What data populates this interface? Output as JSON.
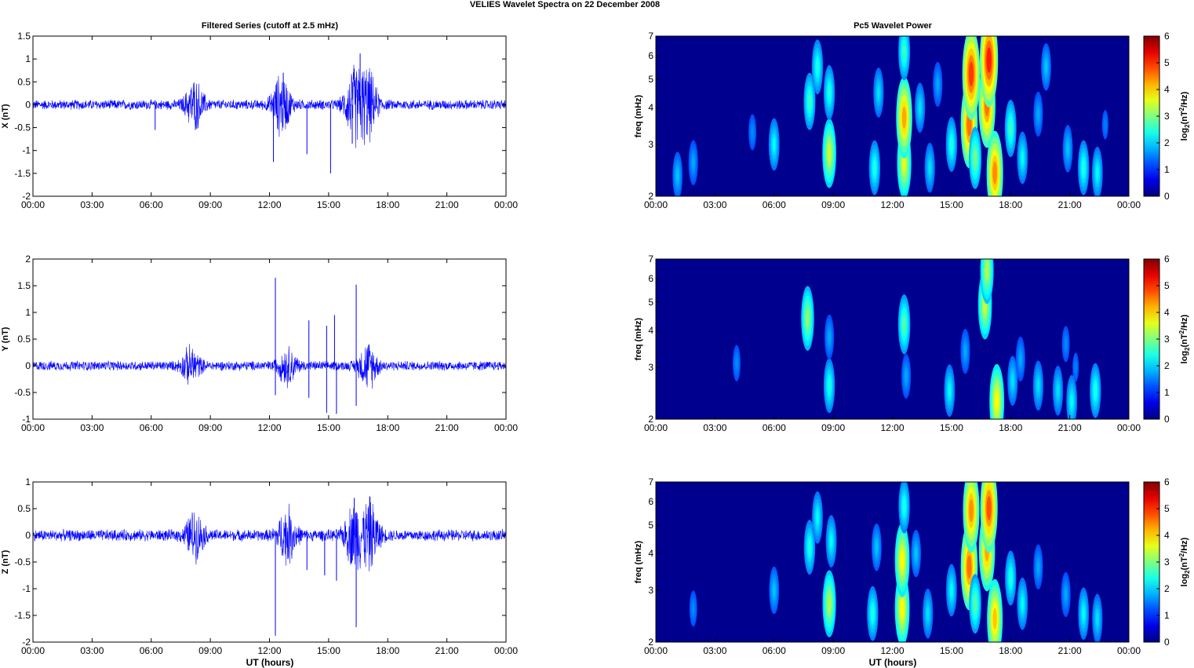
{
  "figure_title": "VELIES Wavelet Spectra on 22 December  2008",
  "left_column_title": "Filtered Series (cutoff at 2.5 mHz)",
  "right_column_title": "Pc5 Wavelet Power",
  "time_ticks": [
    "00:00",
    "03:00",
    "06:00",
    "09:00",
    "12:00",
    "15:00",
    "18:00",
    "21:00",
    "00:00"
  ],
  "xlabel": "UT (hours)",
  "colors": {
    "series": "#0000ff",
    "background": "#00008f"
  },
  "chart_data": [
    {
      "type": "line",
      "title": "Filtered Series (cutoff at 2.5 mHz)",
      "ylabel": "X (nT)",
      "xlim": [
        0,
        24
      ],
      "ylim": [
        -2,
        1.5
      ],
      "yticks": [
        "1.5",
        "1",
        "0.5",
        "0",
        "-0.5",
        "-1",
        "-1.5",
        "-2"
      ],
      "noise_amplitude": 0.12,
      "bursts": [
        {
          "t": 8.2,
          "amp": 0.55
        },
        {
          "t": 12.6,
          "amp": 0.7
        },
        {
          "t": 16.3,
          "amp": 0.85
        },
        {
          "t": 17.0,
          "amp": 0.8
        }
      ],
      "spikes": [
        {
          "t": 12.2,
          "y": -1.25
        },
        {
          "t": 12.7,
          "y": 0.7
        },
        {
          "t": 13.9,
          "y": -1.08
        },
        {
          "t": 15.1,
          "y": -1.5
        },
        {
          "t": 16.6,
          "y": 1.12
        },
        {
          "t": 16.2,
          "y": -0.85
        },
        {
          "t": 6.2,
          "y": -0.55
        }
      ]
    },
    {
      "type": "line",
      "ylabel": "Y (nT)",
      "xlim": [
        0,
        24
      ],
      "ylim": [
        -1,
        2
      ],
      "yticks": [
        "2",
        "1.5",
        "1",
        "0.5",
        "0",
        "-0.5",
        "-1"
      ],
      "noise_amplitude": 0.1,
      "bursts": [
        {
          "t": 8.0,
          "amp": 0.35
        },
        {
          "t": 12.9,
          "amp": 0.35
        },
        {
          "t": 17.0,
          "amp": 0.45
        }
      ],
      "spikes": [
        {
          "t": 12.3,
          "y": 1.65
        },
        {
          "t": 12.3,
          "y": -0.55
        },
        {
          "t": 14.0,
          "y": 0.85
        },
        {
          "t": 14.0,
          "y": -0.6
        },
        {
          "t": 14.9,
          "y": 0.75
        },
        {
          "t": 14.9,
          "y": -0.88
        },
        {
          "t": 15.3,
          "y": 0.95
        },
        {
          "t": 15.4,
          "y": -0.9
        },
        {
          "t": 16.4,
          "y": 1.52
        },
        {
          "t": 16.4,
          "y": -0.75
        }
      ]
    },
    {
      "type": "line",
      "ylabel": "Z (nT)",
      "xlim": [
        0,
        24
      ],
      "ylim": [
        -2,
        1
      ],
      "yticks": [
        "1",
        "0.5",
        "0",
        "-0.5",
        "-1",
        "-1.5",
        "-2"
      ],
      "noise_amplitude": 0.12,
      "bursts": [
        {
          "t": 8.2,
          "amp": 0.45
        },
        {
          "t": 12.9,
          "amp": 0.55
        },
        {
          "t": 16.3,
          "amp": 0.65
        },
        {
          "t": 17.1,
          "amp": 0.65
        }
      ],
      "spikes": [
        {
          "t": 12.3,
          "y": -1.88
        },
        {
          "t": 13.9,
          "y": -0.65
        },
        {
          "t": 14.8,
          "y": -0.75
        },
        {
          "t": 15.4,
          "y": -0.85
        },
        {
          "t": 16.4,
          "y": -1.72
        },
        {
          "t": 16.3,
          "y": 0.7
        },
        {
          "t": 17.1,
          "y": 0.72
        }
      ]
    },
    {
      "type": "heatmap",
      "title": "Pc5 Wavelet Power",
      "ylabel": "freq (mHz)",
      "yscale": "log",
      "xlim": [
        0,
        24
      ],
      "ylim": [
        2,
        7
      ],
      "yticks": [
        "7",
        "6",
        "5",
        "4",
        "3",
        "2"
      ],
      "colorbar": {
        "label": "log2(nT2/Hz)",
        "range": [
          0,
          6
        ],
        "ticks": [
          "6",
          "5",
          "4",
          "3",
          "2",
          "1",
          "0"
        ]
      },
      "blobs": [
        {
          "t": 1.1,
          "f": 2.35,
          "p": 1.4
        },
        {
          "t": 1.9,
          "f": 2.6,
          "p": 1.2
        },
        {
          "t": 4.9,
          "f": 3.3,
          "p": 1.0
        },
        {
          "t": 6.0,
          "f": 3.0,
          "p": 1.8
        },
        {
          "t": 7.8,
          "f": 4.2,
          "p": 2.2
        },
        {
          "t": 8.2,
          "f": 5.5,
          "p": 2.0
        },
        {
          "t": 8.8,
          "f": 2.8,
          "p": 3.2
        },
        {
          "t": 8.8,
          "f": 4.5,
          "p": 2.0
        },
        {
          "t": 11.1,
          "f": 2.5,
          "p": 2.0
        },
        {
          "t": 11.3,
          "f": 4.5,
          "p": 1.6
        },
        {
          "t": 12.6,
          "f": 2.6,
          "p": 3.4
        },
        {
          "t": 12.6,
          "f": 3.7,
          "p": 4.2
        },
        {
          "t": 12.6,
          "f": 6.2,
          "p": 2.2
        },
        {
          "t": 13.4,
          "f": 4.0,
          "p": 1.6
        },
        {
          "t": 13.9,
          "f": 2.5,
          "p": 1.6
        },
        {
          "t": 14.3,
          "f": 4.8,
          "p": 1.2
        },
        {
          "t": 15.0,
          "f": 3.0,
          "p": 2.0
        },
        {
          "t": 15.9,
          "f": 3.5,
          "p": 4.6
        },
        {
          "t": 16.0,
          "f": 5.2,
          "p": 5.0
        },
        {
          "t": 16.2,
          "f": 2.7,
          "p": 2.6
        },
        {
          "t": 16.8,
          "f": 4.1,
          "p": 4.6
        },
        {
          "t": 16.9,
          "f": 5.8,
          "p": 5.2
        },
        {
          "t": 17.2,
          "f": 2.4,
          "p": 4.4
        },
        {
          "t": 18.0,
          "f": 3.4,
          "p": 2.2
        },
        {
          "t": 18.6,
          "f": 2.7,
          "p": 1.8
        },
        {
          "t": 19.4,
          "f": 3.8,
          "p": 1.2
        },
        {
          "t": 19.8,
          "f": 5.5,
          "p": 1.4
        },
        {
          "t": 20.9,
          "f": 2.9,
          "p": 1.4
        },
        {
          "t": 21.7,
          "f": 2.5,
          "p": 2.0
        },
        {
          "t": 22.4,
          "f": 2.4,
          "p": 1.8
        },
        {
          "t": 22.8,
          "f": 3.5,
          "p": 0.9
        }
      ]
    },
    {
      "type": "heatmap",
      "ylabel": "freq (mHz)",
      "yscale": "log",
      "xlim": [
        0,
        24
      ],
      "ylim": [
        2,
        7
      ],
      "yticks": [
        "7",
        "6",
        "5",
        "4",
        "3",
        "2"
      ],
      "colorbar": {
        "label": "log2(nT2/Hz)",
        "range": [
          0,
          6
        ],
        "ticks": [
          "6",
          "5",
          "4",
          "3",
          "2",
          "1",
          "0"
        ]
      },
      "blobs": [
        {
          "t": 4.1,
          "f": 3.1,
          "p": 1.0
        },
        {
          "t": 7.7,
          "f": 4.4,
          "p": 2.8
        },
        {
          "t": 8.8,
          "f": 2.6,
          "p": 2.0
        },
        {
          "t": 8.8,
          "f": 3.8,
          "p": 1.2
        },
        {
          "t": 12.6,
          "f": 4.2,
          "p": 2.4
        },
        {
          "t": 12.7,
          "f": 2.8,
          "p": 1.2
        },
        {
          "t": 14.9,
          "f": 2.5,
          "p": 1.8
        },
        {
          "t": 15.7,
          "f": 3.4,
          "p": 1.2
        },
        {
          "t": 16.7,
          "f": 4.9,
          "p": 3.2
        },
        {
          "t": 16.8,
          "f": 6.4,
          "p": 3.0
        },
        {
          "t": 17.3,
          "f": 2.3,
          "p": 3.6
        },
        {
          "t": 18.1,
          "f": 2.7,
          "p": 1.6
        },
        {
          "t": 18.5,
          "f": 3.2,
          "p": 1.2
        },
        {
          "t": 19.4,
          "f": 2.6,
          "p": 1.6
        },
        {
          "t": 20.4,
          "f": 2.5,
          "p": 1.6
        },
        {
          "t": 20.8,
          "f": 3.6,
          "p": 1.0
        },
        {
          "t": 21.3,
          "f": 3.0,
          "p": 0.9
        },
        {
          "t": 21.1,
          "f": 2.3,
          "p": 1.8
        },
        {
          "t": 22.3,
          "f": 2.5,
          "p": 2.0
        }
      ]
    },
    {
      "type": "heatmap",
      "ylabel": "freq (mHz)",
      "yscale": "log",
      "xlim": [
        0,
        24
      ],
      "ylim": [
        2,
        7
      ],
      "yticks": [
        "7",
        "6",
        "5",
        "4",
        "3",
        "2"
      ],
      "colorbar": {
        "label": "log2(nT2/Hz)",
        "range": [
          0,
          6
        ],
        "ticks": [
          "6",
          "5",
          "4",
          "3",
          "2",
          "1",
          "0"
        ]
      },
      "blobs": [
        {
          "t": 1.9,
          "f": 2.6,
          "p": 1.0
        },
        {
          "t": 6.0,
          "f": 3.0,
          "p": 1.4
        },
        {
          "t": 7.8,
          "f": 4.2,
          "p": 2.0
        },
        {
          "t": 8.2,
          "f": 5.3,
          "p": 1.8
        },
        {
          "t": 8.8,
          "f": 2.7,
          "p": 3.0
        },
        {
          "t": 8.9,
          "f": 4.4,
          "p": 1.8
        },
        {
          "t": 11.0,
          "f": 2.5,
          "p": 2.0
        },
        {
          "t": 11.2,
          "f": 4.2,
          "p": 1.4
        },
        {
          "t": 12.5,
          "f": 2.6,
          "p": 3.6
        },
        {
          "t": 12.5,
          "f": 3.8,
          "p": 3.6
        },
        {
          "t": 12.6,
          "f": 5.8,
          "p": 2.0
        },
        {
          "t": 13.2,
          "f": 4.0,
          "p": 1.4
        },
        {
          "t": 13.8,
          "f": 2.5,
          "p": 1.6
        },
        {
          "t": 15.0,
          "f": 3.0,
          "p": 1.8
        },
        {
          "t": 15.9,
          "f": 3.6,
          "p": 4.6
        },
        {
          "t": 16.0,
          "f": 5.6,
          "p": 4.4
        },
        {
          "t": 16.2,
          "f": 2.7,
          "p": 2.4
        },
        {
          "t": 16.8,
          "f": 4.1,
          "p": 4.2
        },
        {
          "t": 16.9,
          "f": 5.7,
          "p": 4.8
        },
        {
          "t": 17.2,
          "f": 2.4,
          "p": 4.0
        },
        {
          "t": 18.0,
          "f": 3.3,
          "p": 2.0
        },
        {
          "t": 18.6,
          "f": 2.7,
          "p": 1.8
        },
        {
          "t": 19.4,
          "f": 3.6,
          "p": 1.2
        },
        {
          "t": 20.8,
          "f": 2.9,
          "p": 1.2
        },
        {
          "t": 21.7,
          "f": 2.5,
          "p": 1.8
        },
        {
          "t": 22.4,
          "f": 2.4,
          "p": 1.6
        }
      ]
    }
  ]
}
